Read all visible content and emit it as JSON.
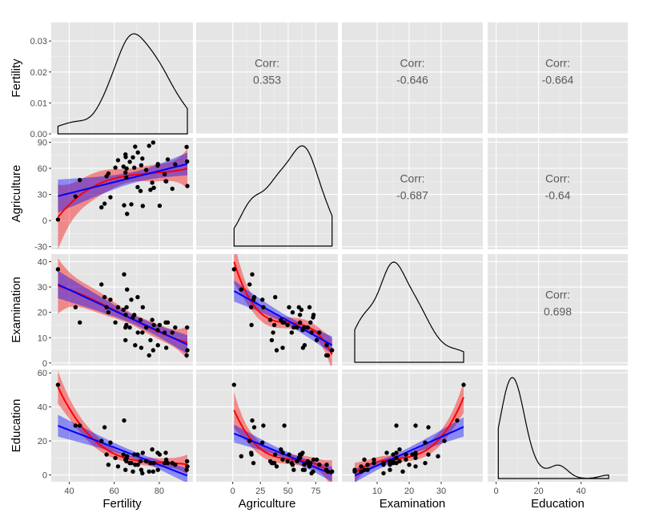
{
  "chart_data": {
    "type": "scatter",
    "variables": [
      "Fertility",
      "Agriculture",
      "Examination",
      "Education"
    ],
    "correlations": {
      "Fertility-Agriculture": "0.353",
      "Fertility-Examination": "-0.646",
      "Fertility-Education": "-0.664",
      "Agriculture-Examination": "-0.687",
      "Agriculture-Education": "-0.64",
      "Examination-Education": "0.698"
    },
    "corr_label": "Corr:",
    "axis_ranges": {
      "Fertility": [
        32.0,
        95.0
      ],
      "Agriculture": [
        -33,
        95
      ],
      "Examination": [
        -1,
        43
      ],
      "Education": [
        -4,
        62
      ]
    },
    "density_ylim": [
      0,
      0.036
    ],
    "density_ticks": [
      "0.00",
      "0.01",
      "0.02",
      "0.03"
    ],
    "x_ticks": {
      "Fertility": [
        40,
        60,
        80
      ],
      "Agriculture": [
        0,
        25,
        50,
        75
      ],
      "Examination": [
        10,
        20,
        30
      ],
      "Education": [
        0,
        20,
        40
      ]
    },
    "y_ticks": {
      "Agriculture": [
        -30,
        0,
        30,
        60,
        90
      ],
      "Examination": [
        0,
        10,
        20,
        30,
        40
      ],
      "Education": [
        0,
        20,
        40,
        60
      ]
    },
    "data": {
      "Fertility": [
        80.2,
        83.1,
        92.5,
        85.8,
        76.9,
        76.1,
        83.8,
        92.4,
        82.4,
        82.9,
        87.1,
        64.1,
        66.9,
        68.9,
        61.7,
        68.3,
        71.7,
        55.7,
        54.3,
        65.1,
        65.5,
        65.0,
        56.6,
        57.4,
        72.5,
        74.2,
        72.0,
        60.5,
        58.3,
        65.4,
        75.5,
        69.3,
        77.3,
        70.5,
        79.4,
        65.0,
        92.2,
        79.3,
        70.4,
        65.7,
        72.7,
        64.4,
        77.6,
        67.6,
        35.0,
        44.7,
        42.8
      ],
      "Agriculture": [
        17.0,
        45.1,
        39.7,
        36.5,
        43.5,
        35.3,
        70.2,
        67.8,
        53.3,
        45.2,
        64.5,
        62.0,
        67.5,
        60.7,
        69.3,
        72.6,
        34.0,
        19.4,
        15.2,
        73.0,
        59.8,
        55.1,
        50.9,
        54.1,
        71.2,
        58.1,
        63.5,
        60.8,
        26.8,
        49.5,
        85.9,
        84.9,
        89.7,
        78.2,
        64.9,
        75.9,
        84.6,
        63.1,
        38.4,
        7.7,
        16.7,
        17.6,
        37.6,
        18.7,
        1.2,
        46.6,
        27.7
      ],
      "Examination": [
        15,
        6,
        5,
        12,
        17,
        9,
        16,
        14,
        12,
        16,
        14,
        21,
        14,
        19,
        22,
        18,
        17,
        26,
        31,
        19,
        22,
        14,
        22,
        20,
        12,
        14,
        6,
        16,
        25,
        15,
        3,
        7,
        5,
        12,
        7,
        9,
        3,
        13,
        26,
        29,
        22,
        35,
        15,
        25,
        37,
        16,
        22
      ],
      "Education": [
        12,
        9,
        5,
        7,
        15,
        7,
        7,
        8,
        7,
        13,
        6,
        12,
        7,
        12,
        5,
        2,
        8,
        28,
        20,
        9,
        10,
        3,
        12,
        6,
        1,
        8,
        3,
        10,
        19,
        8,
        2,
        6,
        2,
        6,
        3,
        9,
        3,
        13,
        12,
        11,
        13,
        32,
        7,
        7,
        53,
        29,
        29
      ]
    }
  }
}
